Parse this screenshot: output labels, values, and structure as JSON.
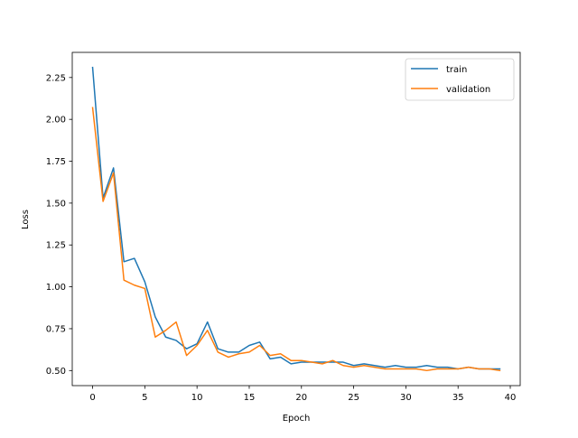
{
  "chart_data": {
    "type": "line",
    "title": "",
    "xlabel": "Epoch",
    "ylabel": "Loss",
    "xlim": [
      -1.95,
      40.95
    ],
    "ylim": [
      0.41,
      2.4
    ],
    "xticks": [
      0,
      5,
      10,
      15,
      20,
      25,
      30,
      35,
      40
    ],
    "xtick_labels": [
      "0",
      "5",
      "10",
      "15",
      "20",
      "25",
      "30",
      "35",
      "40"
    ],
    "yticks": [
      0.5,
      0.75,
      1.0,
      1.25,
      1.5,
      1.75,
      2.0,
      2.25
    ],
    "ytick_labels": [
      "0.50",
      "0.75",
      "1.00",
      "1.25",
      "1.50",
      "1.75",
      "2.00",
      "2.25"
    ],
    "grid": false,
    "legend_position": "top-right",
    "x": [
      0,
      1,
      2,
      3,
      4,
      5,
      6,
      7,
      8,
      9,
      10,
      11,
      12,
      13,
      14,
      15,
      16,
      17,
      18,
      19,
      20,
      21,
      22,
      23,
      24,
      25,
      26,
      27,
      28,
      29,
      30,
      31,
      32,
      33,
      34,
      35,
      36,
      37,
      38,
      39
    ],
    "series": [
      {
        "name": "train",
        "color": "#1f77b4",
        "values": [
          2.31,
          1.53,
          1.71,
          1.15,
          1.17,
          1.03,
          0.82,
          0.7,
          0.68,
          0.63,
          0.66,
          0.79,
          0.63,
          0.61,
          0.61,
          0.65,
          0.67,
          0.57,
          0.58,
          0.54,
          0.55,
          0.55,
          0.55,
          0.55,
          0.55,
          0.53,
          0.54,
          0.53,
          0.52,
          0.53,
          0.52,
          0.52,
          0.53,
          0.52,
          0.52,
          0.51,
          0.52,
          0.51,
          0.51,
          0.51
        ]
      },
      {
        "name": "validation",
        "color": "#ff7f0e",
        "values": [
          2.07,
          1.51,
          1.68,
          1.04,
          1.01,
          0.99,
          0.7,
          0.74,
          0.79,
          0.59,
          0.65,
          0.74,
          0.61,
          0.58,
          0.6,
          0.61,
          0.65,
          0.59,
          0.6,
          0.56,
          0.56,
          0.55,
          0.54,
          0.56,
          0.53,
          0.52,
          0.53,
          0.52,
          0.51,
          0.51,
          0.51,
          0.51,
          0.5,
          0.51,
          0.51,
          0.51,
          0.52,
          0.51,
          0.51,
          0.5
        ]
      }
    ]
  }
}
